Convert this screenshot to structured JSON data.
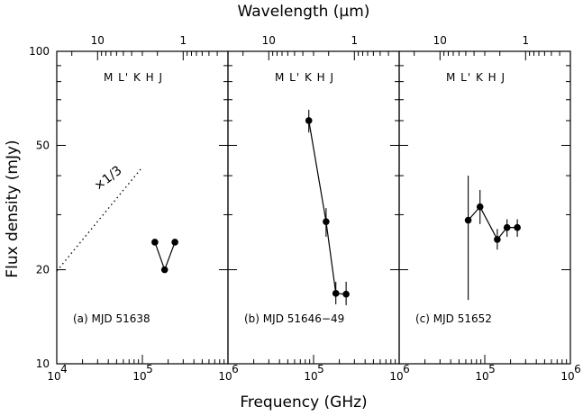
{
  "chart_data": [
    {
      "type": "scatter",
      "panel_label": "(a) MJD 51638",
      "band_labels": "M L' K H J",
      "points": [
        {
          "x": 140000,
          "y": 24.5
        },
        {
          "x": 182000,
          "y": 20.0
        },
        {
          "x": 240000,
          "y": 24.5
        }
      ],
      "error_bars": false,
      "scaling_line": {
        "label": "×1/3",
        "style": "dotted",
        "from": {
          "x": 10000,
          "y": 19.8
        },
        "to": {
          "x": 100000,
          "y": 42.6
        }
      }
    },
    {
      "type": "scatter",
      "panel_label": "(b) MJD 51646−49",
      "band_labels": "M L' K H J",
      "points": [
        {
          "x": 88000,
          "y": 60.0,
          "yerr_low": 55.0,
          "yerr_high": 65.0
        },
        {
          "x": 140000,
          "y": 28.5,
          "yerr_low": 25.5,
          "yerr_high": 31.5
        },
        {
          "x": 182000,
          "y": 16.8,
          "yerr_low": 15.5,
          "yerr_high": 18.3
        },
        {
          "x": 240000,
          "y": 16.7,
          "yerr_low": 15.4,
          "yerr_high": 18.3
        }
      ],
      "error_bars": true
    },
    {
      "type": "scatter",
      "panel_label": "(c) MJD 51652",
      "band_labels": "M L' K H J",
      "points": [
        {
          "x": 64000,
          "y": 28.8,
          "yerr_low": 16.0,
          "yerr_high": 40.0
        },
        {
          "x": 88000,
          "y": 31.8,
          "yerr_low": 28.0,
          "yerr_high": 36.0
        },
        {
          "x": 140000,
          "y": 25.0,
          "yerr_low": 23.2,
          "yerr_high": 27.0
        },
        {
          "x": 182000,
          "y": 27.3,
          "yerr_low": 25.5,
          "yerr_high": 29.0
        },
        {
          "x": 240000,
          "y": 27.3,
          "yerr_low": 25.5,
          "yerr_high": 29.0
        }
      ],
      "error_bars": true
    }
  ],
  "axes": {
    "xlabel": "Frequency (GHz)",
    "ylabel": "Flux density (mJy)",
    "top_label": "Wavelength (μm)",
    "x_scale": "log",
    "y_scale": "log",
    "xlim": [
      10000,
      1000000
    ],
    "ylim": [
      10,
      100
    ],
    "x_tick_labels": [
      {
        "base": "10",
        "exp": "4"
      },
      {
        "base": "10",
        "exp": "5"
      },
      {
        "base": "10",
        "exp": "6"
      }
    ],
    "y_tick_labels": [
      "10",
      "20",
      "50",
      "100"
    ],
    "top_tick_labels": [
      "10",
      "1"
    ],
    "top_tick_wavelengths_um": [
      10,
      1
    ]
  }
}
